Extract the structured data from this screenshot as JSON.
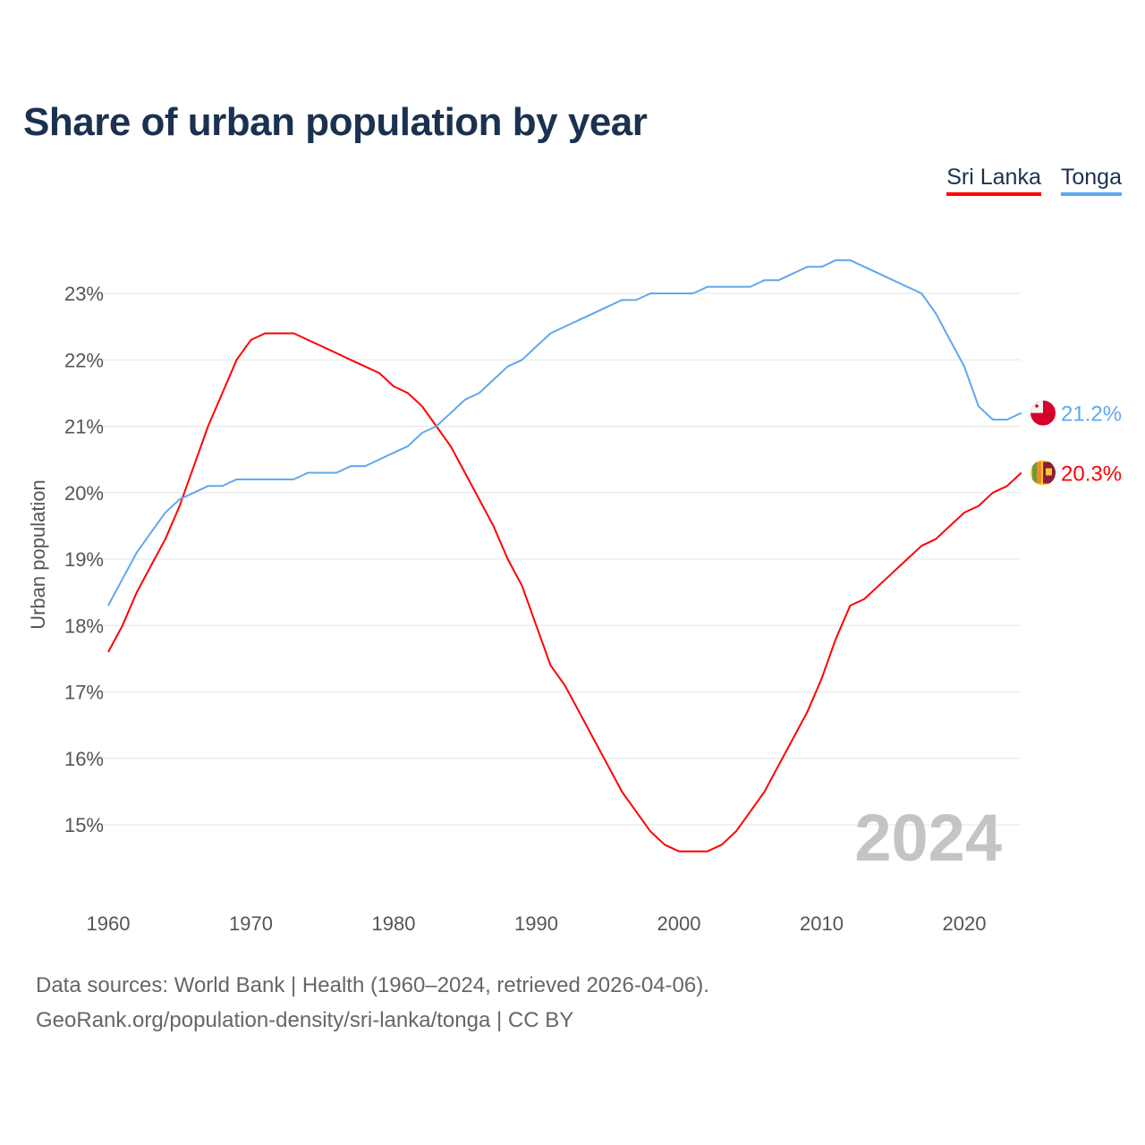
{
  "title": "Share of urban population by year",
  "footer": {
    "line1": "Data sources: World Bank | Health (1960–2024, retrieved 2026-04-06).",
    "line2": "GeoRank.org/population-density/sri-lanka/tonga | CC BY"
  },
  "chart_data": {
    "type": "line",
    "title": "Share of urban population by year",
    "xlabel": "",
    "ylabel": "Urban population",
    "xlim": [
      1960,
      2024
    ],
    "ylim": [
      14,
      23.8
    ],
    "x_ticks": [
      "1960",
      "1970",
      "1980",
      "1990",
      "2000",
      "2010",
      "2020"
    ],
    "y_ticks": [
      "15%",
      "16%",
      "17%",
      "18%",
      "19%",
      "20%",
      "21%",
      "22%",
      "23%"
    ],
    "grid": true,
    "legend_position": "top-right",
    "watermark_year": "2024",
    "x": [
      1960,
      1961,
      1962,
      1963,
      1964,
      1965,
      1966,
      1967,
      1968,
      1969,
      1970,
      1971,
      1972,
      1973,
      1974,
      1975,
      1976,
      1977,
      1978,
      1979,
      1980,
      1981,
      1982,
      1983,
      1984,
      1985,
      1986,
      1987,
      1988,
      1989,
      1990,
      1991,
      1992,
      1993,
      1994,
      1995,
      1996,
      1997,
      1998,
      1999,
      2000,
      2001,
      2002,
      2003,
      2004,
      2005,
      2006,
      2007,
      2008,
      2009,
      2010,
      2011,
      2012,
      2013,
      2014,
      2015,
      2016,
      2017,
      2018,
      2019,
      2020,
      2021,
      2022,
      2023,
      2024
    ],
    "series": [
      {
        "name": "Sri Lanka",
        "color": "#ff0000",
        "end_label": "20.3%",
        "flag": "sri-lanka-flag",
        "values": [
          17.6,
          18.0,
          18.5,
          18.9,
          19.3,
          19.8,
          20.4,
          21.0,
          21.5,
          22.0,
          22.3,
          22.4,
          22.4,
          22.4,
          22.3,
          22.2,
          22.1,
          22.0,
          21.9,
          21.8,
          21.6,
          21.5,
          21.3,
          21.0,
          20.7,
          20.3,
          19.9,
          19.5,
          19.0,
          18.6,
          18.0,
          17.4,
          17.1,
          16.7,
          16.3,
          15.9,
          15.5,
          15.2,
          14.9,
          14.7,
          14.6,
          14.6,
          14.6,
          14.7,
          14.9,
          15.2,
          15.5,
          15.9,
          16.3,
          16.7,
          17.2,
          17.8,
          18.3,
          18.4,
          18.6,
          18.8,
          19.0,
          19.2,
          19.3,
          19.5,
          19.7,
          19.8,
          20.0,
          20.1,
          20.3
        ]
      },
      {
        "name": "Tonga",
        "color": "#5ea8ee",
        "end_label": "21.2%",
        "flag": "tonga-flag",
        "values": [
          18.3,
          18.7,
          19.1,
          19.4,
          19.7,
          19.9,
          20.0,
          20.1,
          20.1,
          20.2,
          20.2,
          20.2,
          20.2,
          20.2,
          20.3,
          20.3,
          20.3,
          20.4,
          20.4,
          20.5,
          20.6,
          20.7,
          20.9,
          21.0,
          21.2,
          21.4,
          21.5,
          21.7,
          21.9,
          22.0,
          22.2,
          22.4,
          22.5,
          22.6,
          22.7,
          22.8,
          22.9,
          22.9,
          23.0,
          23.0,
          23.0,
          23.0,
          23.1,
          23.1,
          23.1,
          23.1,
          23.2,
          23.2,
          23.3,
          23.4,
          23.4,
          23.5,
          23.5,
          23.4,
          23.3,
          23.2,
          23.1,
          23.0,
          22.7,
          22.3,
          21.9,
          21.3,
          21.1,
          21.1,
          21.2
        ]
      }
    ]
  }
}
